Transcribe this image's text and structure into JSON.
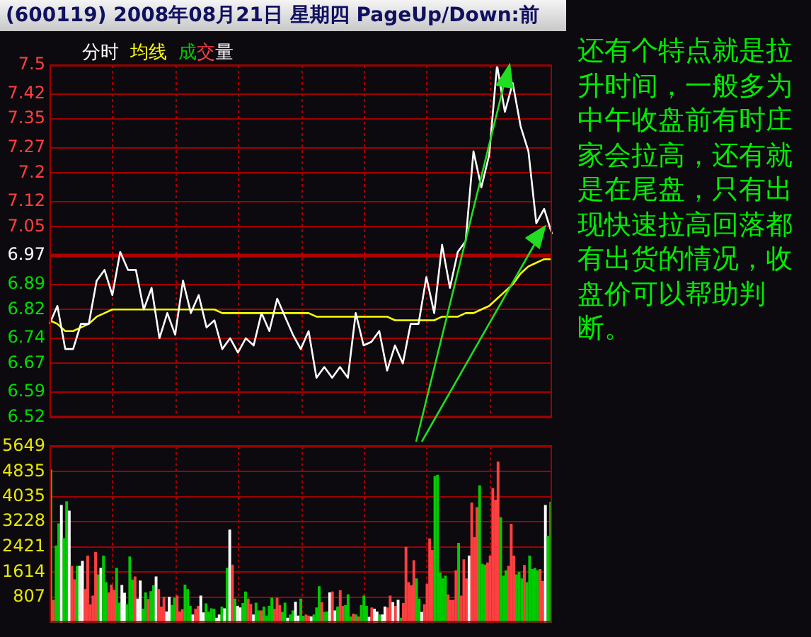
{
  "chart_data": [
    {
      "type": "line",
      "title": "(600119) 2008年08月21日 星期四 PageUp/Down:前",
      "annotations": [
        "还有个特点就是拉升时间，一般多为中午收盘前有时庄家会拉高，还有就是在尾盘，只有出现快速拉高回落都有出货的情况，收盘价可以帮助判断。"
      ],
      "categories": [
        null,
        null,
        null,
        null,
        null,
        null,
        null,
        null,
        null,
        null,
        null,
        null,
        null,
        null,
        null,
        null,
        null,
        null,
        null,
        null,
        null,
        null,
        null,
        null,
        null,
        null,
        null,
        null,
        null,
        null,
        null,
        null,
        null,
        null,
        null,
        null,
        null,
        null,
        null,
        null,
        null,
        null,
        null,
        null,
        null,
        null,
        null,
        null,
        null,
        null,
        null,
        null,
        null,
        null,
        null,
        null,
        null,
        null,
        null,
        null,
        null,
        null,
        null,
        null,
        null
      ],
      "ylim": [
        6.52,
        7.5
      ],
      "yticks": [
        6.52,
        6.59,
        6.67,
        6.74,
        6.82,
        6.89,
        6.97,
        7.05,
        7.12,
        7.2,
        7.27,
        7.35,
        7.42,
        7.5
      ],
      "grid": true,
      "tick_labels": "y",
      "ref_lines": [
        {
          "axis": "y",
          "value": 6.97
        }
      ],
      "series": [
        {
          "name": "分时",
          "color": "#ffffff",
          "values": [
            6.78,
            6.83,
            6.71,
            6.71,
            6.78,
            6.78,
            6.9,
            6.93,
            6.86,
            6.98,
            6.93,
            6.93,
            6.82,
            6.88,
            6.74,
            6.81,
            6.75,
            6.9,
            6.81,
            6.86,
            6.77,
            6.79,
            6.71,
            6.74,
            6.7,
            6.74,
            6.72,
            6.81,
            6.76,
            6.85,
            6.8,
            6.75,
            6.71,
            6.76,
            6.63,
            6.66,
            6.63,
            6.66,
            6.63,
            6.81,
            6.72,
            6.73,
            6.76,
            6.65,
            6.72,
            6.67,
            6.78,
            6.78,
            6.91,
            6.81,
            7.0,
            6.88,
            6.98,
            7.01,
            7.26,
            7.16,
            7.25,
            7.5,
            7.37,
            7.45,
            7.33,
            7.26,
            7.06,
            7.1,
            7.03
          ]
        },
        {
          "name": "均线",
          "color": "#ffff00",
          "values": [
            6.79,
            6.78,
            6.76,
            6.76,
            6.77,
            6.78,
            6.8,
            6.81,
            6.82,
            6.82,
            6.82,
            6.82,
            6.82,
            6.82,
            6.82,
            6.82,
            6.82,
            6.82,
            6.82,
            6.82,
            6.82,
            6.82,
            6.81,
            6.81,
            6.81,
            6.81,
            6.81,
            6.81,
            6.81,
            6.81,
            6.81,
            6.81,
            6.81,
            6.81,
            6.8,
            6.8,
            6.8,
            6.8,
            6.8,
            6.8,
            6.8,
            6.8,
            6.8,
            6.8,
            6.79,
            6.79,
            6.79,
            6.79,
            6.79,
            6.79,
            6.8,
            6.8,
            6.8,
            6.81,
            6.81,
            6.82,
            6.83,
            6.85,
            6.87,
            6.89,
            6.92,
            6.94,
            6.95,
            6.96,
            6.96
          ]
        }
      ]
    },
    {
      "type": "bar",
      "categories": [
        null,
        null,
        null,
        null,
        null,
        null,
        null,
        null,
        null,
        null,
        null,
        null,
        null,
        null,
        null,
        null,
        null,
        null,
        null,
        null,
        null,
        null,
        null,
        null,
        null,
        null,
        null,
        null,
        null,
        null,
        null,
        null,
        null,
        null,
        null,
        null,
        null,
        null,
        null,
        null,
        null,
        null,
        null,
        null,
        null,
        null,
        null,
        null,
        null,
        null,
        null,
        null,
        null,
        null,
        null,
        null,
        null,
        null,
        null,
        null,
        null,
        null,
        null,
        null,
        null,
        null,
        null,
        null,
        null,
        null,
        null,
        null,
        null,
        null,
        null,
        null,
        null,
        null,
        null,
        null,
        null,
        null,
        null,
        null,
        null,
        null,
        null,
        null,
        null,
        null,
        null,
        null,
        null,
        null,
        null,
        null,
        null,
        null,
        null,
        null,
        null,
        null,
        null,
        null,
        null,
        null,
        null,
        null,
        null,
        null,
        null,
        null,
        null,
        null,
        null,
        null,
        null,
        null,
        null,
        null,
        null,
        null,
        null,
        null,
        null,
        null,
        null,
        null,
        null,
        null,
        null,
        null,
        null,
        null,
        null,
        null,
        null,
        null,
        null,
        null,
        null,
        null,
        null,
        null,
        null,
        null,
        null,
        null,
        null,
        null,
        null,
        null,
        null,
        null,
        null,
        null,
        null,
        null,
        null,
        null,
        null,
        null,
        null,
        null,
        null,
        null,
        null,
        null,
        null,
        null,
        null,
        null,
        null,
        null,
        null,
        null,
        null,
        null,
        null,
        null,
        null,
        null,
        null,
        null,
        null,
        null,
        null,
        null,
        null,
        null,
        null
      ],
      "ylim": [
        0,
        5649
      ],
      "yticks": [
        807,
        1614,
        2421,
        3228,
        4035,
        4835,
        5649
      ],
      "grid": true,
      "tick_labels": "y",
      "series": [
        {
          "name": "成交量",
          "values": [
            4890,
            710,
            2450,
            3160,
            3750,
            2690,
            3870,
            3570,
            1800,
            1370,
            1800,
            1800,
            1960,
            1060,
            2130,
            570,
            850,
            2250,
            1530,
            1740,
            2130,
            1280,
            950,
            1200,
            1030,
            1740,
            620,
            1190,
            940,
            570,
            2100,
            1360,
            1460,
            750,
            1330,
            430,
            950,
            740,
            990,
            1180,
            1460,
            1060,
            500,
            810,
            340,
            810,
            550,
            780,
            850,
            340,
            410,
            1200,
            1060,
            520,
            240,
            430,
            520,
            850,
            310,
            600,
            340,
            440,
            430,
            140,
            240,
            500,
            440,
            1740,
            2960,
            1840,
            750,
            520,
            470,
            610,
            980,
            750,
            580,
            240,
            620,
            370,
            370,
            500,
            210,
            520,
            780,
            430,
            780,
            550,
            330,
            620,
            140,
            240,
            370,
            650,
            210,
            750,
            200,
            240,
            210,
            180,
            240,
            470,
            1150,
            640,
            330,
            340,
            950,
            980,
            370,
            500,
            1020,
            520,
            550,
            890,
            180,
            270,
            240,
            180,
            550,
            850,
            520,
            170,
            470,
            430,
            340,
            240,
            240,
            500,
            470,
            850,
            640,
            520,
            710,
            140,
            610,
            2410,
            1280,
            1180,
            1980,
            1400,
            750,
            330,
            570,
            1230,
            2680,
            2310,
            4680,
            4720,
            1590,
            1400,
            1490,
            890,
            710,
            710,
            1660,
            2540,
            850,
            2010,
            1400,
            2130,
            3830,
            2720,
            3680,
            4380,
            1870,
            1840,
            1910,
            2130,
            4290,
            3920,
            5140,
            3360,
            1490,
            1660,
            1800,
            3150,
            2130,
            1530,
            1600,
            1400,
            1830,
            1280,
            2130,
            1700,
            1740,
            1660,
            1700,
            1320,
            3750,
            2760,
            3850
          ],
          "colors": [
            "#00cc00",
            "#ff4040",
            "#00cc00",
            "#00cc00",
            "#ffffff",
            "#00cc00",
            "#00cc00",
            "#ffffff",
            "#ff4040",
            "#ff4040",
            "#00cc00",
            "#ffffff",
            "#ffffff",
            "#ff4040",
            "#ff4040",
            "#ff4040",
            "#ff4040",
            "#ff4040",
            "#00cc00",
            "#ffffff",
            "#00cc00",
            "#00cc00",
            "#ff4040",
            "#ff4040",
            "#ff4040",
            "#00cc00",
            "#00cc00",
            "#ffffff",
            "#ffffff",
            "#00cc00",
            "#00cc00",
            "#00cc00",
            "#ff4040",
            "#ffffff",
            "#ffffff",
            "#00cc00",
            "#00cc00",
            "#ff4040",
            "#00cc00",
            "#00cc00",
            "#ffffff",
            "#ff4040",
            "#ff4040",
            "#ff4040",
            "#ffffff",
            "#ffffff",
            "#00cc00",
            "#00cc00",
            "#ff4040",
            "#ff4040",
            "#ff4040",
            "#00cc00",
            "#00cc00",
            "#00cc00",
            "#ffffff",
            "#ff4040",
            "#ff4040",
            "#ffffff",
            "#ffffff",
            "#00cc00",
            "#00cc00",
            "#00cc00",
            "#00cc00",
            "#ffffff",
            "#ffffff",
            "#00cc00",
            "#ffffff",
            "#00cc00",
            "#ffffff",
            "#ff4040",
            "#00cc00",
            "#ffffff",
            "#ffffff",
            "#00cc00",
            "#00cc00",
            "#ff4040",
            "#ff4040",
            "#ffffff",
            "#00cc00",
            "#00cc00",
            "#ff4040",
            "#00cc00",
            "#00cc00",
            "#00cc00",
            "#00cc00",
            "#ff4040",
            "#ff4040",
            "#ff4040",
            "#00cc00",
            "#00cc00",
            "#ffffff",
            "#00cc00",
            "#00cc00",
            "#ffffff",
            "#ffffff",
            "#00cc00",
            "#00cc00",
            "#ff4040",
            "#ff4040",
            "#ffffff",
            "#00cc00",
            "#00cc00",
            "#00cc00",
            "#ff4040",
            "#00cc00",
            "#00cc00",
            "#ffffff",
            "#ff4040",
            "#ffffff",
            "#00cc00",
            "#ff4040",
            "#ff4040",
            "#00cc00",
            "#00cc00",
            "#00cc00",
            "#ff4040",
            "#00cc00",
            "#ff4040",
            "#00cc00",
            "#00cc00",
            "#00cc00",
            "#ffffff",
            "#ff4040",
            "#ffffff",
            "#ffffff",
            "#00cc00",
            "#ffffff",
            "#ffffff",
            "#ff4040",
            "#ff4040",
            "#ffffff",
            "#ff4040",
            "#ffffff",
            "#00cc00",
            "#ff4040",
            "#ff4040",
            "#ff4040",
            "#ff4040",
            "#ff4040",
            "#00cc00",
            "#00cc00",
            "#ffffff",
            "#ff4040",
            "#ff4040",
            "#ff4040",
            "#ff4040",
            "#00cc00",
            "#00cc00",
            "#00cc00",
            "#00cc00",
            "#00cc00",
            "#ff4040",
            "#ff4040",
            "#ff4040",
            "#ff4040",
            "#00cc00",
            "#ff4040",
            "#ff4040",
            "#ff4040",
            "#ffffff",
            "#ff4040",
            "#ff4040",
            "#ff4040",
            "#00cc00",
            "#00cc00",
            "#00cc00",
            "#ff4040",
            "#ff4040",
            "#ff4040",
            "#ff4040",
            "#ff4040",
            "#00cc00",
            "#00cc00",
            "#00cc00",
            "#ff4040",
            "#ff4040",
            "#ff4040",
            "#00cc00",
            "#00cc00",
            "#00cc00",
            "#ff4040",
            "#00cc00",
            "#00cc00",
            "#00cc00",
            "#00cc00",
            "#00cc00",
            "#ff4040",
            "#ff4040",
            "#ffffff",
            "#00cc00",
            "#00cc00"
          ]
        }
      ]
    }
  ]
}
